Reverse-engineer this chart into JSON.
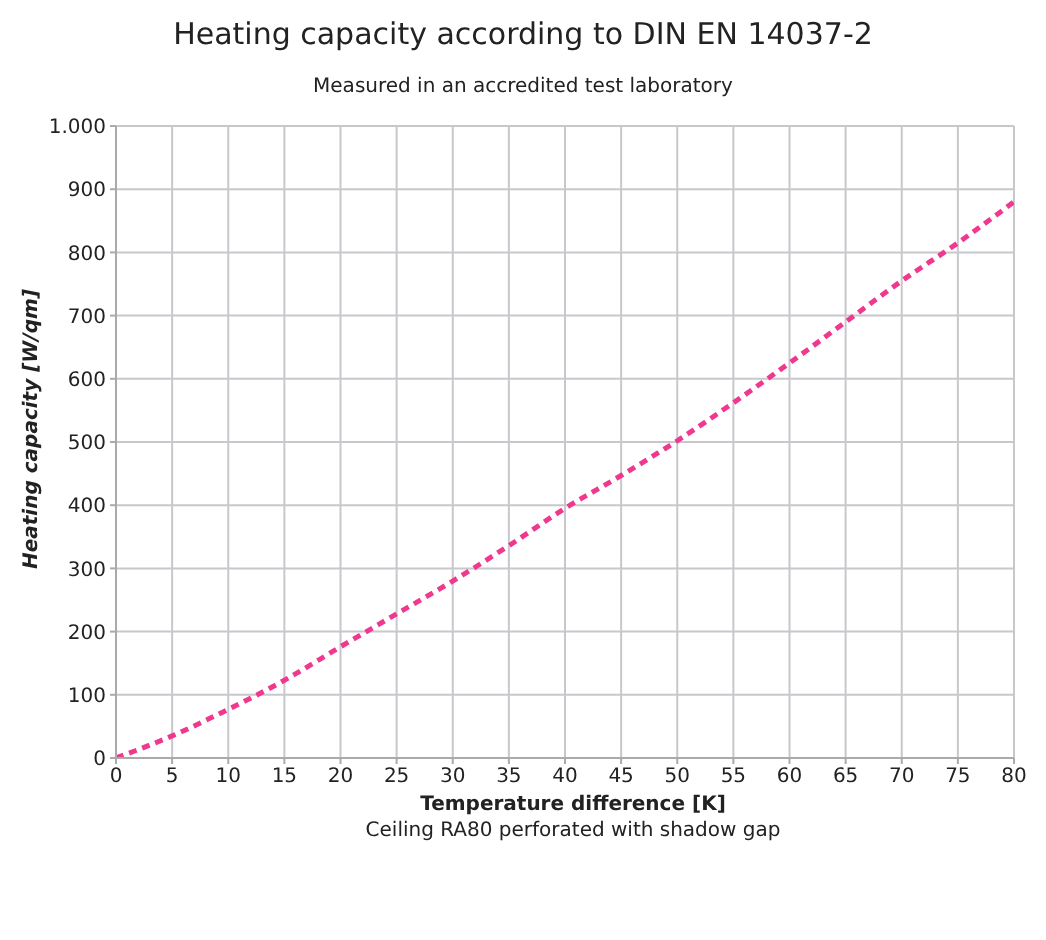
{
  "chart_data": {
    "type": "line",
    "title": "Heating capacity according to DIN EN 14037-2",
    "subtitle": "Measured in an accredited test laboratory",
    "xlabel": "Temperature difference [K]",
    "ylabel": "Heating capacity [W/qm]",
    "annotations": [
      "Ceiling RA80 perforated with shadow gap"
    ],
    "x": [
      0,
      5,
      10,
      15,
      20,
      25,
      30,
      35,
      40,
      45,
      50,
      55,
      60,
      65,
      70,
      75,
      80
    ],
    "series": [
      {
        "color": "#f0388f",
        "values": [
          0,
          35,
          77,
          123,
          176,
          228,
          280,
          336,
          395,
          447,
          502,
          562,
          625,
          690,
          755,
          815,
          880
        ]
      }
    ],
    "xlim": [
      0,
      80
    ],
    "xticks": [
      0,
      5,
      10,
      15,
      20,
      25,
      30,
      35,
      40,
      45,
      50,
      55,
      60,
      65,
      70,
      75,
      80
    ],
    "ylim": [
      0,
      1000
    ],
    "yticks": [
      0,
      100,
      200,
      300,
      400,
      500,
      600,
      700,
      800,
      900,
      {
        "value": 1000,
        "label": "1.000"
      }
    ],
    "grid": true,
    "legend": false,
    "marker": "none",
    "line_style": "dashed"
  }
}
